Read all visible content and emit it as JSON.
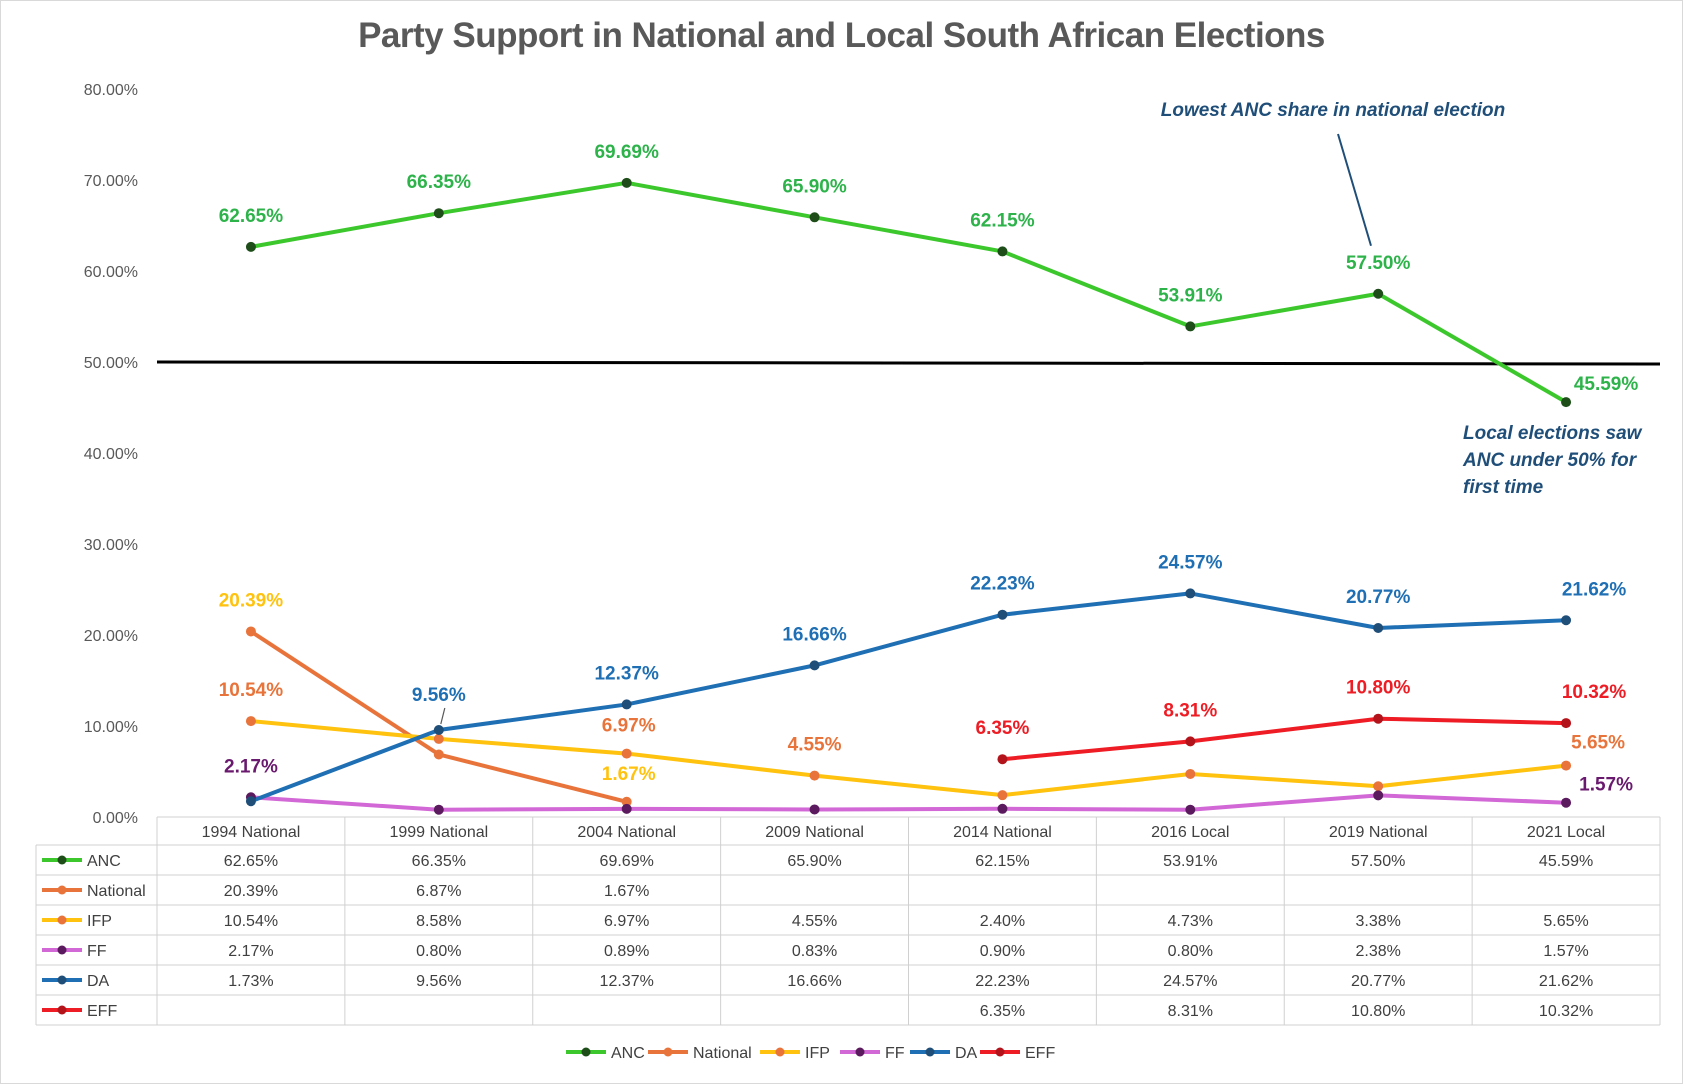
{
  "chart_data": {
    "type": "line",
    "title": "Party Support in National and Local South African Elections",
    "categories": [
      "1994 National",
      "1999 National",
      "2004 National",
      "2009 National",
      "2014 National",
      "2016 Local",
      "2019 National",
      "2021 Local"
    ],
    "ylim": [
      0,
      80
    ],
    "yticks": [
      "0.00%",
      "10.00%",
      "20.00%",
      "30.00%",
      "40.00%",
      "50.00%",
      "60.00%",
      "70.00%",
      "80.00%"
    ],
    "y_unit": "percent",
    "grid": false,
    "legend_position": "bottom",
    "reference_line": {
      "value": 50,
      "color": "#000000"
    },
    "series": [
      {
        "name": "ANC",
        "color": "#3cc82d",
        "marker": "#1e4d1a",
        "values": [
          62.65,
          66.35,
          69.69,
          65.9,
          62.15,
          53.91,
          57.5,
          45.59
        ],
        "table": [
          "62.65%",
          "66.35%",
          "69.69%",
          "65.90%",
          "62.15%",
          "53.91%",
          "57.50%",
          "45.59%"
        ],
        "labels": [
          "62.65%",
          "66.35%",
          "69.69%",
          "65.90%",
          "62.15%",
          "53.91%",
          "57.50%",
          "45.59%"
        ],
        "label_color": "#2db34a"
      },
      {
        "name": "National",
        "color": "#e8743b",
        "marker": "#e8743b",
        "values": [
          20.39,
          6.87,
          1.67,
          null,
          null,
          null,
          null,
          null
        ],
        "table": [
          "20.39%",
          "6.87%",
          "1.67%",
          "",
          "",
          "",
          "",
          ""
        ],
        "labels": [],
        "label_color": "#e8743b"
      },
      {
        "name": "IFP",
        "color": "#ffc20e",
        "marker": "#e8743b",
        "values": [
          10.54,
          8.58,
          6.97,
          4.55,
          2.4,
          4.73,
          3.38,
          5.65
        ],
        "table": [
          "10.54%",
          "8.58%",
          "6.97%",
          "4.55%",
          "2.40%",
          "4.73%",
          "3.38%",
          "5.65%"
        ],
        "labels": [],
        "label_color": "#ffc20e"
      },
      {
        "name": "FF",
        "color": "#d268d6",
        "marker": "#5b1a5e",
        "values": [
          2.17,
          0.8,
          0.89,
          0.83,
          0.9,
          0.8,
          2.38,
          1.57
        ],
        "table": [
          "2.17%",
          "0.80%",
          "0.89%",
          "0.83%",
          "0.90%",
          "0.80%",
          "2.38%",
          "1.57%"
        ],
        "labels": [],
        "label_color": "#6a1a6e"
      },
      {
        "name": "DA",
        "color": "#1f6fb4",
        "marker": "#1f4e79",
        "values": [
          1.73,
          9.56,
          12.37,
          16.66,
          22.23,
          24.57,
          20.77,
          21.62
        ],
        "table": [
          "1.73%",
          "9.56%",
          "12.37%",
          "16.66%",
          "22.23%",
          "24.57%",
          "20.77%",
          "21.62%"
        ],
        "labels": [],
        "label_color": "#1f6fb4"
      },
      {
        "name": "EFF",
        "color": "#ee1c24",
        "marker": "#b3141b",
        "values": [
          null,
          null,
          null,
          null,
          6.35,
          8.31,
          10.8,
          10.32
        ],
        "table": [
          "",
          "",
          "",
          "",
          "6.35%",
          "8.31%",
          "10.80%",
          "10.32%"
        ],
        "labels": [],
        "label_color": "#ee1c24"
      }
    ],
    "data_labels": [
      {
        "text": "62.65%",
        "color": "#2db34a"
      },
      {
        "text": "66.35%",
        "color": "#2db34a"
      },
      {
        "text": "69.69%",
        "color": "#2db34a"
      },
      {
        "text": "65.90%",
        "color": "#2db34a"
      },
      {
        "text": "62.15%",
        "color": "#2db34a"
      },
      {
        "text": "53.91%",
        "color": "#2db34a"
      },
      {
        "text": "57.50%",
        "color": "#2db34a"
      },
      {
        "text": "45.59%",
        "color": "#2db34a"
      },
      {
        "text": "20.39%",
        "color": "#ffc20e"
      },
      {
        "text": "10.54%",
        "color": "#e8743b"
      },
      {
        "text": "6.97%",
        "color": "#e8743b"
      },
      {
        "text": "1.67%",
        "color": "#ffc20e"
      },
      {
        "text": "4.55%",
        "color": "#e8743b"
      },
      {
        "text": "5.65%",
        "color": "#e8743b"
      },
      {
        "text": "2.17%",
        "color": "#6a1a6e"
      },
      {
        "text": "1.57%",
        "color": "#6a1a6e"
      },
      {
        "text": "9.56%",
        "color": "#1f6fb4"
      },
      {
        "text": "12.37%",
        "color": "#1f6fb4"
      },
      {
        "text": "16.66%",
        "color": "#1f6fb4"
      },
      {
        "text": "22.23%",
        "color": "#1f6fb4"
      },
      {
        "text": "24.57%",
        "color": "#1f6fb4"
      },
      {
        "text": "20.77%",
        "color": "#1f6fb4"
      },
      {
        "text": "21.62%",
        "color": "#1f6fb4"
      },
      {
        "text": "6.35%",
        "color": "#ee1c24"
      },
      {
        "text": "8.31%",
        "color": "#ee1c24"
      },
      {
        "text": "10.80%",
        "color": "#ee1c24"
      },
      {
        "text": "10.32%",
        "color": "#ee1c24"
      }
    ],
    "annotations": [
      {
        "lines": [
          "Lowest ANC share in national election"
        ]
      },
      {
        "lines": [
          "Local elections saw",
          "ANC under 50% for",
          "first time"
        ]
      }
    ]
  }
}
